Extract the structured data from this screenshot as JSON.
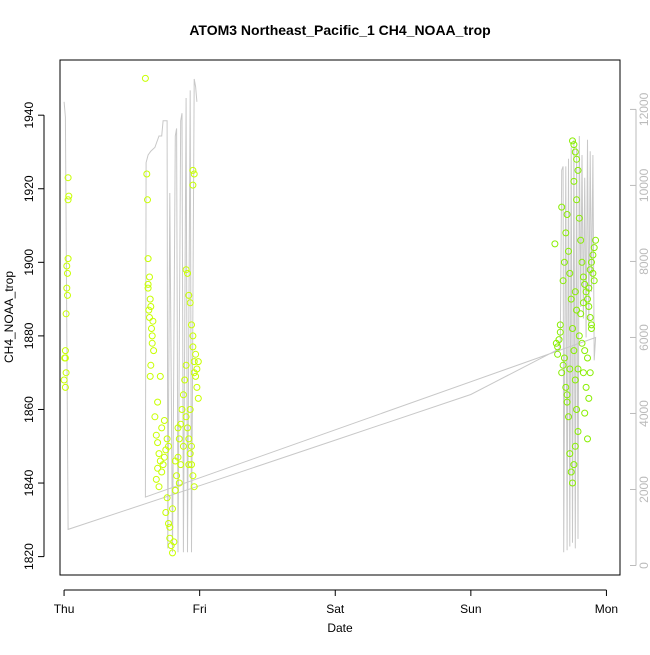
{
  "chart_data": {
    "type": "scatter",
    "title": "ATOM3 Northeast_Pacific_1 CH4_NOAA_trop",
    "xlabel": "Date",
    "ylabel": "CH4_NOAA_trop",
    "xlim": [
      -0.03,
      4.1
    ],
    "ylim": [
      1815,
      1955
    ],
    "y2lim": [
      -250,
      13300
    ],
    "x_ticks": [
      {
        "value": 0,
        "label": "Thu"
      },
      {
        "value": 1,
        "label": "Fri"
      },
      {
        "value": 2,
        "label": "Sat"
      },
      {
        "value": 3,
        "label": "Sun"
      },
      {
        "value": 4,
        "label": "Mon"
      }
    ],
    "y_ticks": [
      1820,
      1840,
      1860,
      1880,
      1900,
      1920,
      1940
    ],
    "y2_ticks": [
      0,
      2000,
      4000,
      6000,
      8000,
      10000,
      12000
    ],
    "colors": {
      "axis": "#000000",
      "secondary_axis": "#bbbbbb",
      "altitude_line": "#c8c8c8",
      "points_early": "#c8ff00",
      "points_late": "#88ee00"
    },
    "grid": false,
    "legend": "none",
    "series": [
      {
        "kind": "points",
        "axis": "left",
        "points": [
          [
            0.0,
            1868
          ],
          [
            0.01,
            1866
          ],
          [
            0.005,
            1874
          ],
          [
            0.01,
            1876
          ],
          [
            0.015,
            1870
          ],
          [
            0.02,
            1893
          ],
          [
            0.025,
            1897
          ],
          [
            0.02,
            1899
          ],
          [
            0.03,
            1901
          ],
          [
            0.025,
            1891
          ],
          [
            0.015,
            1886
          ],
          [
            0.03,
            1917
          ],
          [
            0.035,
            1918
          ],
          [
            0.03,
            1923
          ],
          [
            0.01,
            1874
          ],
          [
            0.6,
            1950
          ],
          [
            0.61,
            1924
          ],
          [
            0.615,
            1917
          ],
          [
            0.62,
            1901
          ],
          [
            0.63,
            1896
          ],
          [
            0.62,
            1893
          ],
          [
            0.635,
            1890
          ],
          [
            0.64,
            1888
          ],
          [
            0.63,
            1885
          ],
          [
            0.645,
            1882
          ],
          [
            0.65,
            1878
          ],
          [
            0.66,
            1876
          ],
          [
            0.64,
            1872
          ],
          [
            0.635,
            1869
          ],
          [
            0.65,
            1880
          ],
          [
            0.62,
            1894
          ],
          [
            0.625,
            1887
          ],
          [
            0.655,
            1884
          ],
          [
            0.67,
            1858
          ],
          [
            0.68,
            1853
          ],
          [
            0.69,
            1851
          ],
          [
            0.7,
            1848
          ],
          [
            0.71,
            1846
          ],
          [
            0.69,
            1844
          ],
          [
            0.68,
            1841
          ],
          [
            0.7,
            1839
          ],
          [
            0.72,
            1843
          ],
          [
            0.73,
            1845
          ],
          [
            0.74,
            1847
          ],
          [
            0.75,
            1849
          ],
          [
            0.76,
            1852
          ],
          [
            0.72,
            1855
          ],
          [
            0.74,
            1857
          ],
          [
            0.77,
            1850
          ],
          [
            0.71,
            1869
          ],
          [
            0.69,
            1862
          ],
          [
            0.76,
            1836
          ],
          [
            0.75,
            1832
          ],
          [
            0.77,
            1829
          ],
          [
            0.78,
            1825
          ],
          [
            0.79,
            1823
          ],
          [
            0.8,
            1821
          ],
          [
            0.81,
            1824
          ],
          [
            0.78,
            1828
          ],
          [
            0.8,
            1833
          ],
          [
            0.82,
            1838
          ],
          [
            0.83,
            1842
          ],
          [
            0.84,
            1847
          ],
          [
            0.85,
            1852
          ],
          [
            0.86,
            1856
          ],
          [
            0.87,
            1860
          ],
          [
            0.88,
            1864
          ],
          [
            0.89,
            1868
          ],
          [
            0.9,
            1872
          ],
          [
            0.86,
            1845
          ],
          [
            0.88,
            1850
          ],
          [
            0.84,
            1855
          ],
          [
            0.82,
            1846
          ],
          [
            0.85,
            1840
          ],
          [
            0.9,
            1898
          ],
          [
            0.91,
            1897
          ],
          [
            0.92,
            1891
          ],
          [
            0.93,
            1889
          ],
          [
            0.94,
            1883
          ],
          [
            0.95,
            1877
          ],
          [
            0.96,
            1873
          ],
          [
            0.97,
            1869
          ],
          [
            0.98,
            1866
          ],
          [
            0.99,
            1863
          ],
          [
            0.95,
            1880
          ],
          [
            0.97,
            1875
          ],
          [
            0.96,
            1870
          ],
          [
            0.9,
            1858
          ],
          [
            0.91,
            1855
          ],
          [
            0.92,
            1852
          ],
          [
            0.93,
            1848
          ],
          [
            0.94,
            1845
          ],
          [
            0.95,
            1842
          ],
          [
            0.96,
            1839
          ],
          [
            0.92,
            1845
          ],
          [
            0.94,
            1850
          ],
          [
            0.95,
            1925
          ],
          [
            0.96,
            1924
          ],
          [
            0.95,
            1921
          ],
          [
            0.93,
            1860
          ],
          [
            0.98,
            1871
          ],
          [
            0.99,
            1873
          ]
        ]
      },
      {
        "kind": "points",
        "axis": "left",
        "points": [
          [
            3.62,
            1905
          ],
          [
            3.63,
            1878
          ],
          [
            3.64,
            1877
          ],
          [
            3.65,
            1879
          ],
          [
            3.66,
            1881
          ],
          [
            3.64,
            1875
          ],
          [
            3.66,
            1883
          ],
          [
            3.67,
            1870
          ],
          [
            3.68,
            1872
          ],
          [
            3.69,
            1874
          ],
          [
            3.7,
            1866
          ],
          [
            3.71,
            1862
          ],
          [
            3.68,
            1895
          ],
          [
            3.69,
            1900
          ],
          [
            3.7,
            1908
          ],
          [
            3.71,
            1913
          ],
          [
            3.67,
            1915
          ],
          [
            3.72,
            1903
          ],
          [
            3.73,
            1897
          ],
          [
            3.74,
            1890
          ],
          [
            3.75,
            1882
          ],
          [
            3.76,
            1876
          ],
          [
            3.77,
            1868
          ],
          [
            3.78,
            1860
          ],
          [
            3.79,
            1854
          ],
          [
            3.73,
            1848
          ],
          [
            3.74,
            1843
          ],
          [
            3.75,
            1840
          ],
          [
            3.76,
            1845
          ],
          [
            3.77,
            1850
          ],
          [
            3.72,
            1858
          ],
          [
            3.71,
            1864
          ],
          [
            3.73,
            1871
          ],
          [
            3.75,
            1933
          ],
          [
            3.76,
            1932
          ],
          [
            3.77,
            1930
          ],
          [
            3.78,
            1928
          ],
          [
            3.79,
            1925
          ],
          [
            3.76,
            1922
          ],
          [
            3.78,
            1917
          ],
          [
            3.8,
            1912
          ],
          [
            3.81,
            1906
          ],
          [
            3.82,
            1900
          ],
          [
            3.83,
            1896
          ],
          [
            3.84,
            1894
          ],
          [
            3.85,
            1892
          ],
          [
            3.86,
            1890
          ],
          [
            3.87,
            1888
          ],
          [
            3.88,
            1885
          ],
          [
            3.89,
            1883
          ],
          [
            3.8,
            1880
          ],
          [
            3.82,
            1878
          ],
          [
            3.84,
            1876
          ],
          [
            3.86,
            1874
          ],
          [
            3.83,
            1870
          ],
          [
            3.85,
            1866
          ],
          [
            3.81,
            1886
          ],
          [
            3.83,
            1889
          ],
          [
            3.87,
            1893
          ],
          [
            3.88,
            1898
          ],
          [
            3.89,
            1900
          ],
          [
            3.9,
            1902
          ],
          [
            3.91,
            1904
          ],
          [
            3.92,
            1906
          ],
          [
            3.9,
            1897
          ],
          [
            3.91,
            1895
          ],
          [
            3.89,
            1882
          ],
          [
            3.88,
            1870
          ],
          [
            3.86,
            1852
          ],
          [
            3.87,
            1863
          ],
          [
            3.84,
            1859
          ],
          [
            3.79,
            1871
          ],
          [
            3.78,
            1887
          ],
          [
            3.77,
            1892
          ]
        ]
      },
      {
        "kind": "line",
        "axis": "right",
        "name": "",
        "points": [
          [
            0.0,
            12200
          ],
          [
            0.01,
            11800
          ],
          [
            0.03,
            950
          ],
          [
            1.0,
            2100
          ],
          [
            2.0,
            3300
          ],
          [
            3.0,
            4500
          ],
          [
            3.65,
            5700
          ],
          [
            3.66,
            5900
          ],
          [
            3.67,
            10400
          ],
          [
            3.68,
            10500
          ],
          [
            3.685,
            350
          ],
          [
            3.7,
            10500
          ],
          [
            3.71,
            400
          ],
          [
            3.72,
            10700
          ],
          [
            3.73,
            500
          ],
          [
            3.74,
            11000
          ],
          [
            3.75,
            600
          ],
          [
            3.76,
            11200
          ],
          [
            3.77,
            450
          ],
          [
            3.78,
            11000
          ],
          [
            3.79,
            700
          ],
          [
            3.8,
            11300
          ],
          [
            3.81,
            6800
          ],
          [
            3.82,
            10800
          ],
          [
            3.83,
            6500
          ],
          [
            3.84,
            10200
          ],
          [
            3.85,
            6000
          ],
          [
            3.86,
            11200
          ],
          [
            3.87,
            6300
          ],
          [
            3.88,
            10900
          ],
          [
            3.89,
            7200
          ],
          [
            3.9,
            10800
          ],
          [
            3.91,
            5400
          ],
          [
            3.92,
            6000
          ],
          [
            0.6,
            1800
          ],
          [
            0.605,
            10600
          ],
          [
            0.62,
            10800
          ],
          [
            0.64,
            10900
          ],
          [
            0.67,
            11000
          ],
          [
            0.7,
            11300
          ],
          [
            0.72,
            11300
          ],
          [
            0.73,
            11700
          ],
          [
            0.76,
            11700
          ],
          [
            0.765,
            450
          ],
          [
            0.78,
            9800
          ],
          [
            0.8,
            350
          ],
          [
            0.82,
            11300
          ],
          [
            0.83,
            11500
          ],
          [
            0.84,
            350
          ],
          [
            0.86,
            11700
          ],
          [
            0.87,
            11900
          ],
          [
            0.88,
            350
          ],
          [
            0.9,
            12300
          ],
          [
            0.91,
            350
          ],
          [
            0.93,
            12500
          ],
          [
            0.94,
            350
          ],
          [
            0.96,
            12800
          ],
          [
            0.97,
            12600
          ],
          [
            0.98,
            12200
          ]
        ]
      }
    ]
  }
}
